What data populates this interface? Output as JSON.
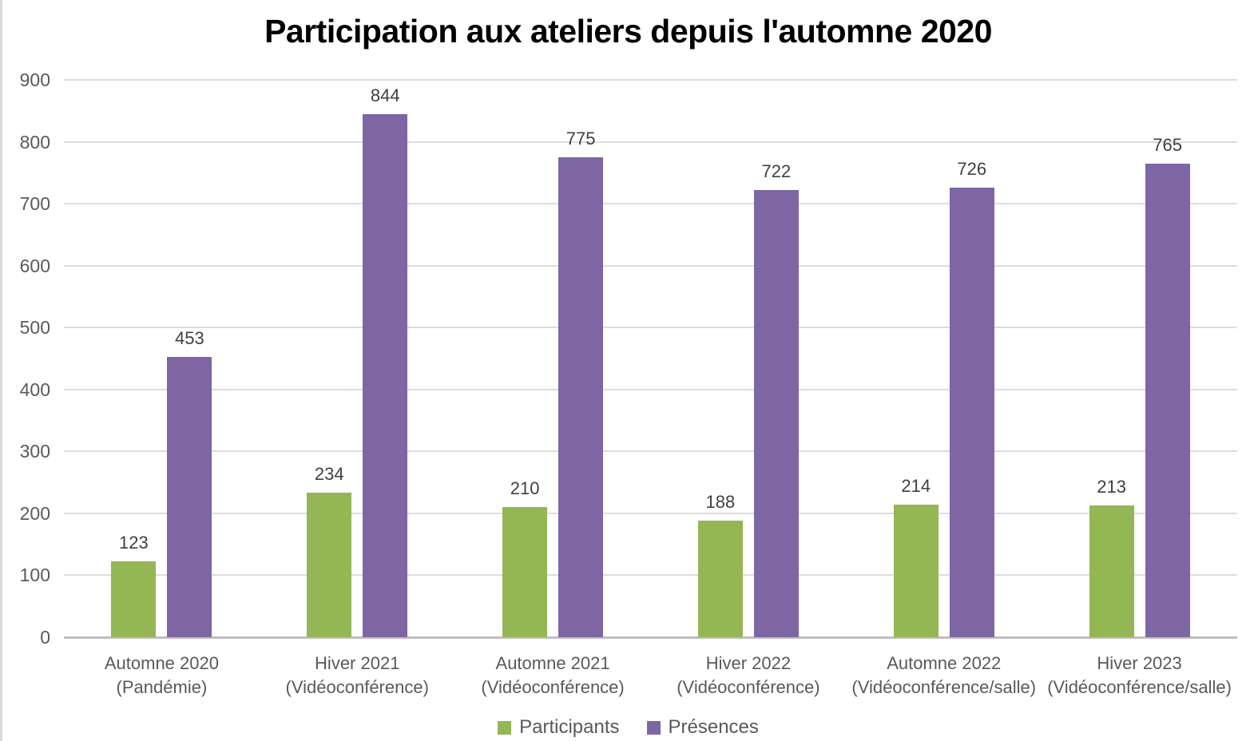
{
  "chart_data": {
    "type": "bar",
    "title": "Participation aux ateliers depuis l'automne 2020",
    "categories": [
      "Automne 2020\n(Pandémie)",
      "Hiver 2021\n(Vidéoconférence)",
      "Automne 2021\n(Vidéoconférence)",
      "Hiver 2022\n(Vidéoconférence)",
      "Automne 2022\n(Vidéoconférence/salle)",
      "Hiver 2023\n(Vidéoconférence/salle)"
    ],
    "series": [
      {
        "name": "Participants",
        "color": "#95b654",
        "values": [
          123,
          234,
          210,
          188,
          214,
          213
        ]
      },
      {
        "name": "Présences",
        "color": "#7d66a3",
        "values": [
          453,
          844,
          775,
          722,
          726,
          765
        ]
      }
    ],
    "ylim": [
      0,
      900
    ],
    "ytick_step": 100,
    "yticks": [
      0,
      100,
      200,
      300,
      400,
      500,
      600,
      700,
      800,
      900
    ],
    "grid": true,
    "data_labels": true,
    "legend_position": "bottom",
    "colors": {
      "axis_text": "#595959",
      "data_label": "#404040",
      "gridline": "#dcdcdc",
      "axis_line": "#bfbfbf",
      "title": "#000000",
      "legend_text": "#595959"
    }
  }
}
